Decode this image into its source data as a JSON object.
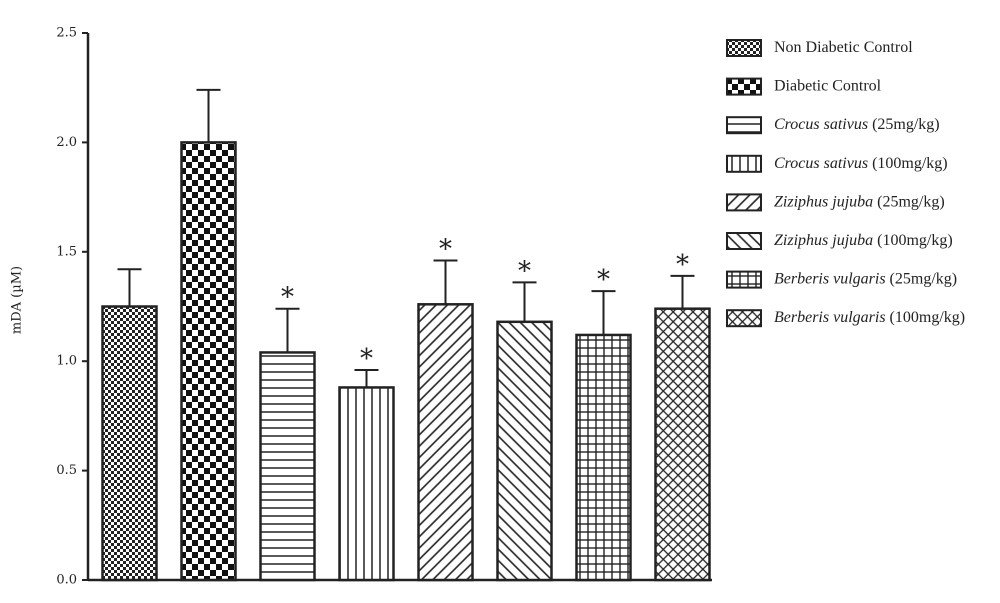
{
  "chart_data": {
    "type": "bar",
    "y_label": "mDA (µM)",
    "ylim": [
      0,
      2.5
    ],
    "yticks": [
      {
        "value": 0,
        "label": "0.0"
      },
      {
        "value": 0.5,
        "label": "0.5"
      },
      {
        "value": 1,
        "label": "1.0"
      },
      {
        "value": 1.5,
        "label": "1.5"
      },
      {
        "value": 2,
        "label": "2.0"
      },
      {
        "value": 2.5,
        "label": "2.5"
      }
    ],
    "series": [
      {
        "name": [
          "Non Diabetic Control"
        ],
        "pattern": "checker-small",
        "values": [
          1.25
        ],
        "errors": [
          0.17
        ]
      },
      {
        "name": [
          "Diabetic Control"
        ],
        "pattern": "checker-large",
        "values": [
          2.0
        ],
        "errors": [
          0.24
        ]
      },
      {
        "name": [
          "Crocus sativus",
          "(25mg/kg)"
        ],
        "pattern": "hlines",
        "values": [
          1.04
        ],
        "errors": [
          0.2
        ],
        "annotation": "*"
      },
      {
        "name": [
          "Crocus sativus",
          "(100mg/kg)"
        ],
        "pattern": "vlines",
        "values": [
          0.88
        ],
        "errors": [
          0.08
        ],
        "annotation": "*"
      },
      {
        "name": [
          "Ziziphus jujuba",
          "(25mg/kg)"
        ],
        "pattern": "diag-up",
        "values": [
          1.26
        ],
        "errors": [
          0.2
        ],
        "annotation": "*"
      },
      {
        "name": [
          "Ziziphus jujuba",
          "(100mg/kg)"
        ],
        "pattern": "diag-down",
        "values": [
          1.18
        ],
        "errors": [
          0.18
        ],
        "annotation": "*"
      },
      {
        "name": [
          "Berberis vulgaris",
          "(25mg/kg)"
        ],
        "pattern": "grid",
        "values": [
          1.12
        ],
        "errors": [
          0.2
        ],
        "annotation": "*"
      },
      {
        "name": [
          "Berberis vulgaris",
          "(100mg/kg)"
        ],
        "pattern": "crosshatch",
        "values": [
          1.24
        ],
        "errors": [
          0.15
        ],
        "annotation": "*"
      }
    ]
  }
}
